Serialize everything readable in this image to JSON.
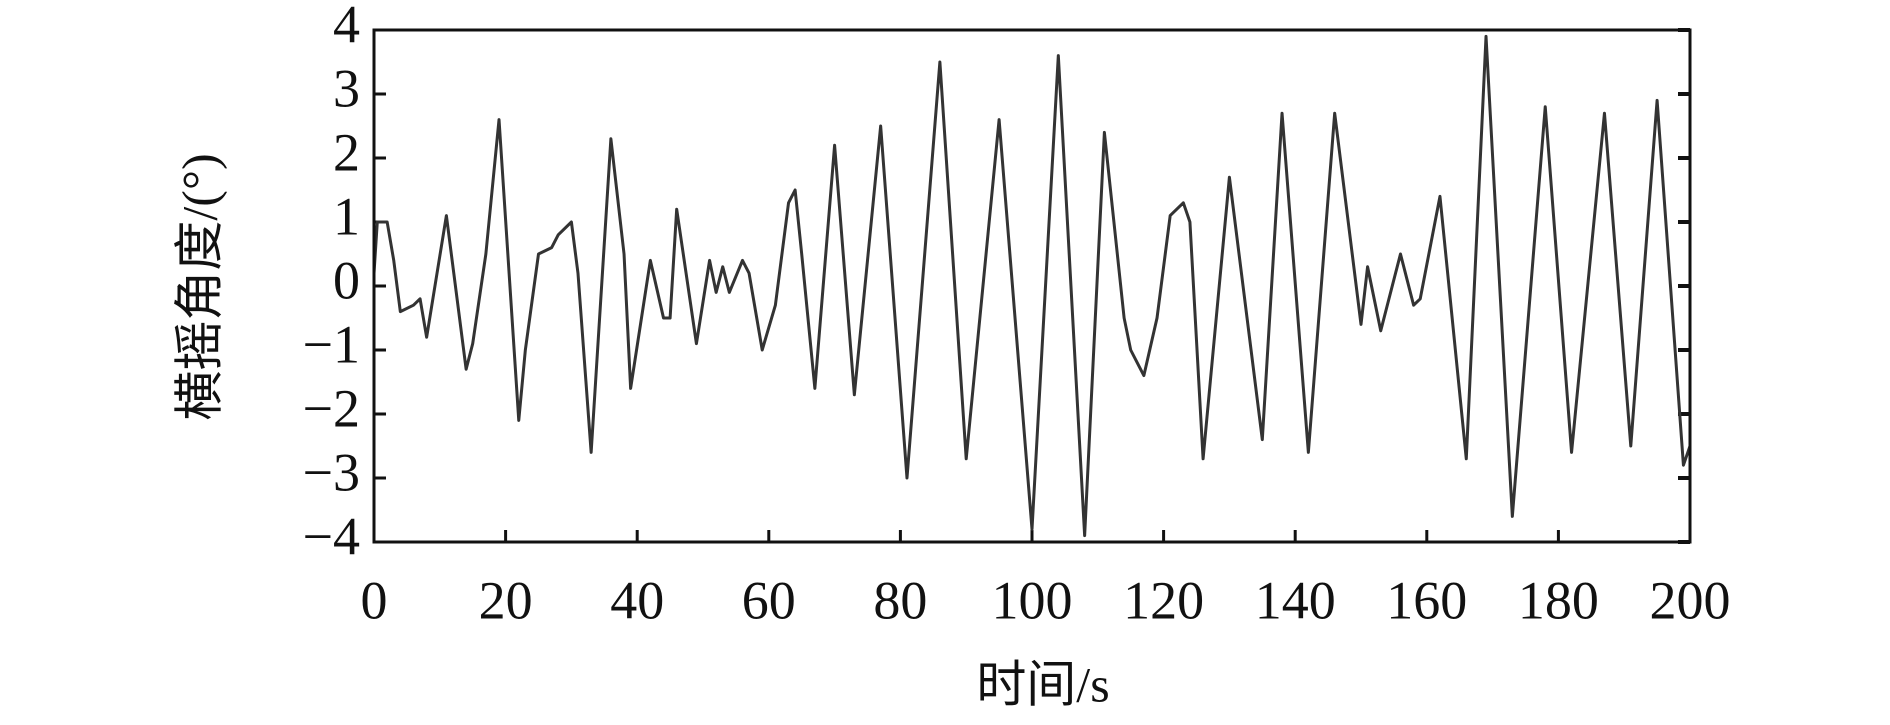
{
  "chart_data": {
    "type": "line",
    "xlabel": "时间/s",
    "ylabel": "横摇角度/(°)",
    "x": [
      0,
      0.5,
      2,
      3,
      4,
      6,
      7,
      8,
      11,
      14,
      15,
      17,
      19,
      22,
      23,
      25,
      27,
      28,
      30,
      31,
      33,
      36,
      38,
      39,
      42,
      44,
      45,
      46,
      48,
      49,
      51,
      52,
      53,
      54,
      56,
      57,
      59,
      61,
      63,
      64,
      65,
      67,
      70,
      73,
      77,
      81,
      86,
      90,
      95,
      100,
      104,
      108,
      111,
      114,
      115,
      116,
      117,
      119,
      121,
      123,
      124,
      126,
      130,
      135,
      138,
      142,
      146,
      150,
      151,
      153,
      156,
      158,
      159,
      162,
      166,
      169,
      173,
      178,
      182,
      187,
      191,
      195,
      199,
      200
    ],
    "series": [
      {
        "color": "#333333",
        "values": [
          0.2,
          1.0,
          1.0,
          0.4,
          -0.4,
          -0.3,
          -0.2,
          -0.8,
          1.1,
          -1.3,
          -0.9,
          0.5,
          2.6,
          -2.1,
          -1.0,
          0.5,
          0.6,
          0.8,
          1.0,
          0.2,
          -2.6,
          2.3,
          0.5,
          -1.6,
          0.4,
          -0.5,
          -0.5,
          1.2,
          -0.2,
          -0.9,
          0.4,
          -0.1,
          0.3,
          -0.1,
          0.4,
          0.2,
          -1.0,
          -0.3,
          1.3,
          1.5,
          0.5,
          -1.6,
          2.2,
          -1.7,
          2.5,
          -3.0,
          3.5,
          -2.7,
          2.6,
          -3.8,
          3.6,
          -3.9,
          2.4,
          -0.5,
          -1.0,
          -1.2,
          -1.4,
          -0.5,
          1.1,
          1.3,
          1.0,
          -2.7,
          1.7,
          -2.4,
          2.7,
          -2.6,
          2.7,
          -0.6,
          0.3,
          -0.7,
          0.5,
          -0.3,
          -0.2,
          1.4,
          -2.7,
          3.9,
          -3.6,
          2.8,
          -2.6,
          2.7,
          -2.5,
          2.9,
          -2.8,
          -2.5
        ]
      }
    ],
    "xlim": [
      0,
      200
    ],
    "xticks": [
      0,
      20,
      40,
      60,
      80,
      100,
      120,
      140,
      160,
      180,
      200
    ],
    "ylim": [
      -4,
      4
    ],
    "yticks": [
      {
        "value": -4,
        "label": "−4"
      },
      {
        "value": -3,
        "label": "−3"
      },
      {
        "value": -2,
        "label": "−2"
      },
      {
        "value": -1,
        "label": "−1"
      },
      0,
      1,
      2,
      3,
      4
    ],
    "grid": false
  }
}
